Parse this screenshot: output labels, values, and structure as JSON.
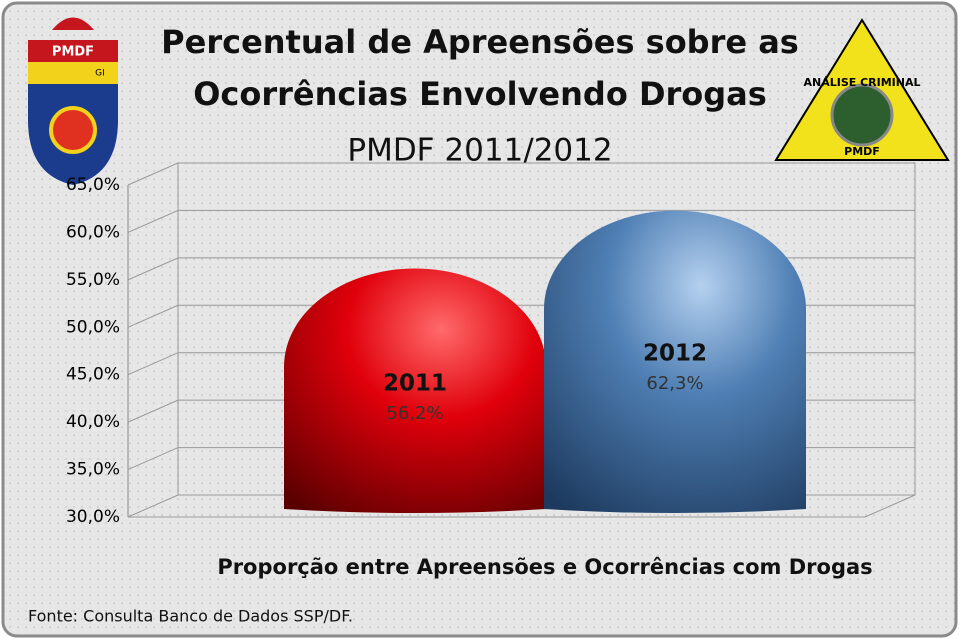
{
  "chart_data": {
    "type": "bar",
    "title": "Percentual de Apreensões sobre as Ocorrências Envolvendo Drogas",
    "subtitle": "PMDF 2011/2012",
    "x_label": "Proporção entre Apreensões e Ocorrências com Drogas",
    "source": "Fonte: Consulta Banco de Dados SSP/DF.",
    "logos": {
      "left": [
        "PMDF",
        "GI"
      ],
      "right": [
        "ANÁLISE CRIMINAL",
        "PMDF"
      ]
    },
    "categories": [
      "2011",
      "2012"
    ],
    "values": [
      56.2,
      62.3
    ],
    "value_labels": [
      "56,2%",
      "62,3%"
    ],
    "colors": [
      "#e0000b",
      "#4f7fb4"
    ],
    "ylim": [
      30,
      65
    ],
    "yticks": [
      {
        "value": 30,
        "label": "30,0%"
      },
      {
        "value": 35,
        "label": "35,0%"
      },
      {
        "value": 40,
        "label": "40,0%"
      },
      {
        "value": 45,
        "label": "45,0%"
      },
      {
        "value": 50,
        "label": "50,0%"
      },
      {
        "value": 55,
        "label": "55,0%"
      },
      {
        "value": 60,
        "label": "60,0%"
      },
      {
        "value": 65,
        "label": "65,0%"
      }
    ],
    "grid": true
  }
}
